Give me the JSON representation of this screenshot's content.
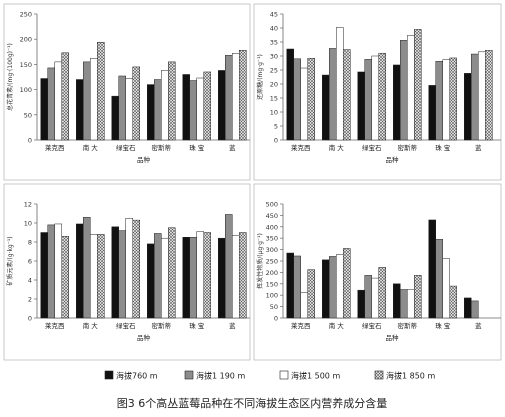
{
  "caption": "图3    6个高丛蓝莓品种在不同海拔生态区内营养成分含量",
  "colors": {
    "s760": "#111111",
    "s1190": "#8c8c8c",
    "s1500": "#ffffff",
    "s1850": "#d9d9d9",
    "bar_stroke": "#222222",
    "axis": "#666666",
    "grid": "#e6e6e6",
    "border": "#bdbdbd"
  },
  "legend": [
    {
      "label": "海拔760 m",
      "fill": "solid-black"
    },
    {
      "label": "海拔1 190 m",
      "fill": "solid-gray"
    },
    {
      "label": "海拔1 500 m",
      "fill": "white"
    },
    {
      "label": "海拔1 850 m",
      "fill": "crosshatch"
    }
  ],
  "chart_data": [
    {
      "type": "bar",
      "title": "",
      "xlabel": "品种",
      "ylabel": "总花青素/(mg·(100g)⁻¹)",
      "ylim": [
        0,
        250
      ],
      "yticks": [
        0,
        50,
        100,
        150,
        200,
        250
      ],
      "grid": false,
      "categories": [
        "莱克西",
        "南 大",
        "绿宝石",
        "密斯蒂",
        "珠 宝",
        "蓝"
      ],
      "series": [
        {
          "name": "海拔760 m",
          "values": [
            122,
            120,
            87,
            110,
            130,
            138
          ]
        },
        {
          "name": "海拔1 190 m",
          "values": [
            143,
            155,
            127,
            120,
            118,
            168
          ]
        },
        {
          "name": "海拔1 500 m",
          "values": [
            155,
            162,
            122,
            138,
            123,
            172
          ]
        },
        {
          "name": "海拔1 850 m",
          "values": [
            173,
            194,
            145,
            155,
            135,
            178
          ]
        }
      ]
    },
    {
      "type": "bar",
      "title": "",
      "xlabel": "品种",
      "ylabel": "还原糖/(mg·g⁻¹)",
      "ylim": [
        0,
        45
      ],
      "yticks": [
        0,
        5,
        10,
        15,
        20,
        25,
        30,
        35,
        40,
        45
      ],
      "grid": false,
      "categories": [
        "莱克西",
        "南 大",
        "绿宝石",
        "密斯蒂",
        "珠 宝",
        "蓝"
      ],
      "series": [
        {
          "name": "海拔760 m",
          "values": [
            32.5,
            23.2,
            24.3,
            26.8,
            19.5,
            23.8
          ]
        },
        {
          "name": "海拔1 190 m",
          "values": [
            29.0,
            32.7,
            28.8,
            35.6,
            28.1,
            30.7
          ]
        },
        {
          "name": "海拔1 500 m",
          "values": [
            25.7,
            40.2,
            30.0,
            37.3,
            28.7,
            31.5
          ]
        },
        {
          "name": "海拔1 850 m",
          "values": [
            29.2,
            32.3,
            31.0,
            39.5,
            29.3,
            32.0
          ]
        }
      ]
    },
    {
      "type": "bar",
      "title": "",
      "xlabel": "品种",
      "ylabel": "矿质元素/(g·kg⁻¹)",
      "ylim": [
        0,
        12
      ],
      "yticks": [
        0,
        2,
        4,
        6,
        8,
        10,
        12
      ],
      "grid": false,
      "categories": [
        "莱克西",
        "南 大",
        "绿宝石",
        "密斯蒂",
        "珠 宝",
        "蓝"
      ],
      "series": [
        {
          "name": "海拔760 m",
          "values": [
            9.0,
            9.9,
            9.6,
            7.8,
            8.5,
            8.4
          ]
        },
        {
          "name": "海拔1 190 m",
          "values": [
            9.8,
            10.6,
            9.2,
            8.9,
            8.5,
            10.9
          ]
        },
        {
          "name": "海拔1 500 m",
          "values": [
            9.9,
            8.8,
            10.5,
            8.4,
            9.1,
            8.7
          ]
        },
        {
          "name": "海拔1 850 m",
          "values": [
            8.6,
            8.8,
            10.3,
            9.5,
            9.0,
            9.0
          ]
        }
      ]
    },
    {
      "type": "bar",
      "title": "",
      "xlabel": "品种",
      "ylabel": "挥发性物质/(μg·g⁻¹)",
      "ylim": [
        0,
        500
      ],
      "yticks": [
        0,
        50,
        100,
        150,
        200,
        250,
        300,
        350,
        400,
        450,
        500
      ],
      "grid": false,
      "categories": [
        "莱克西",
        "南 大",
        "绿宝石",
        "密斯蒂",
        "珠 宝",
        "蓝"
      ],
      "series": [
        {
          "name": "海拔760 m",
          "values": [
            285,
            255,
            122,
            150,
            430,
            88
          ]
        },
        {
          "name": "海拔1 190 m",
          "values": [
            272,
            270,
            187,
            125,
            345,
            75
          ]
        },
        {
          "name": "海拔1 500 m",
          "values": [
            112,
            278,
            175,
            125,
            260,
            0
          ]
        },
        {
          "name": "海拔1 850 m",
          "values": [
            212,
            305,
            222,
            187,
            140,
            0
          ]
        }
      ]
    }
  ]
}
